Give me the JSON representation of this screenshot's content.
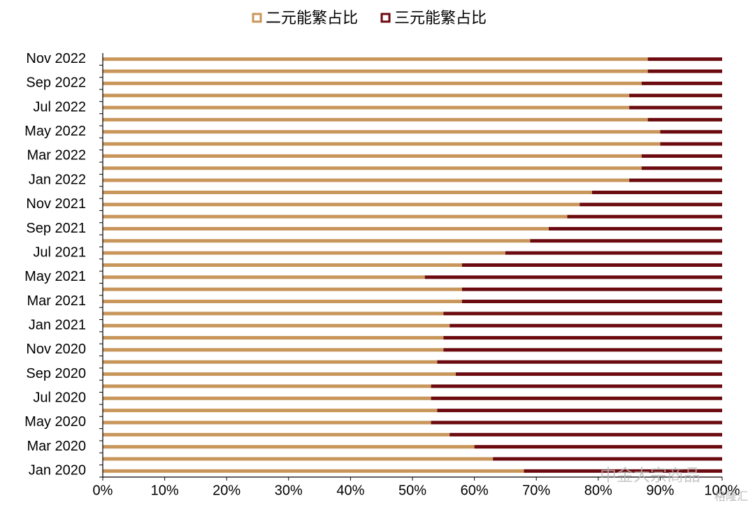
{
  "chart_data": {
    "type": "stacked_bar_horizontal",
    "categories": [
      "Jan 2020",
      null,
      "Mar 2020",
      null,
      "May 2020",
      null,
      "Jul 2020",
      null,
      "Sep 2020",
      null,
      "Nov 2020",
      null,
      "Jan 2021",
      null,
      "Mar 2021",
      null,
      "May 2021",
      null,
      "Jul 2021",
      null,
      "Sep 2021",
      null,
      "Nov 2021",
      null,
      "Jan 2022",
      null,
      "Mar 2022",
      null,
      "May 2022",
      null,
      "Jul 2022",
      null,
      "Sep 2022",
      null,
      "Nov 2022"
    ],
    "series": [
      {
        "name": "二元能繁占比",
        "color": "#c8965a",
        "values": [
          68,
          63,
          60,
          56,
          53,
          54,
          53,
          53,
          57,
          54,
          55,
          55,
          56,
          55,
          58,
          58,
          52,
          58,
          65,
          69,
          72,
          75,
          77,
          79,
          85,
          87,
          87,
          90,
          90,
          88,
          85,
          85,
          87,
          88,
          88
        ]
      },
      {
        "name": "三元能繁占比",
        "color": "#6b0a0f",
        "values": [
          32,
          37,
          40,
          44,
          47,
          46,
          47,
          47,
          43,
          46,
          45,
          45,
          44,
          45,
          42,
          42,
          48,
          42,
          35,
          31,
          28,
          25,
          23,
          21,
          15,
          13,
          13,
          10,
          10,
          12,
          15,
          15,
          13,
          12,
          12
        ]
      }
    ],
    "xlim": [
      0,
      100
    ],
    "xticks": [
      {
        "value": 0,
        "label": "0%"
      },
      {
        "value": 10,
        "label": "10%"
      },
      {
        "value": 20,
        "label": "20%"
      },
      {
        "value": 30,
        "label": "30%"
      },
      {
        "value": 40,
        "label": "40%"
      },
      {
        "value": 50,
        "label": "50%"
      },
      {
        "value": 60,
        "label": "60%"
      },
      {
        "value": 70,
        "label": "70%"
      },
      {
        "value": 80,
        "label": "80%"
      },
      {
        "value": 90,
        "label": "90%"
      },
      {
        "value": 100,
        "label": "100%"
      }
    ],
    "legend": "top",
    "annotations": [
      "中金大宗商品",
      "格隆汇"
    ]
  }
}
